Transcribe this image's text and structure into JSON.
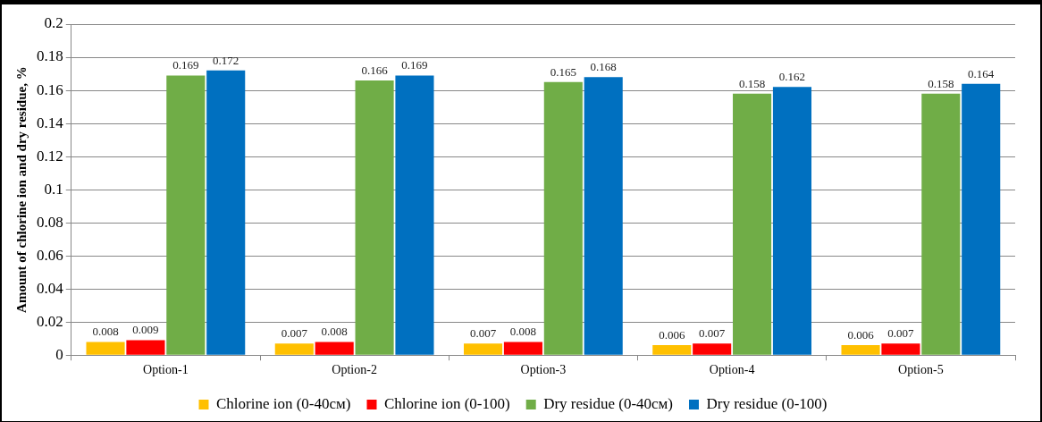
{
  "chart_data": {
    "type": "bar",
    "ylabel": "Amount of chlorine ion and dry residue, %",
    "categories": [
      "Option-1",
      "Option-2",
      "Option-3",
      "Option-4",
      "Option-5"
    ],
    "series": [
      {
        "name": "Chlorine ion (0-40см)",
        "color": "#ffc000",
        "values": [
          0.008,
          0.007,
          0.007,
          0.006,
          0.006
        ]
      },
      {
        "name": "Chlorine ion (0-100)",
        "color": "#ff0000",
        "values": [
          0.009,
          0.008,
          0.008,
          0.007,
          0.007
        ]
      },
      {
        "name": "Dry residue (0-40см)",
        "color": "#70ad47",
        "values": [
          0.169,
          0.166,
          0.165,
          0.158,
          0.158
        ]
      },
      {
        "name": "Dry residue (0-100)",
        "color": "#0070c0",
        "values": [
          0.172,
          0.169,
          0.168,
          0.162,
          0.164
        ]
      }
    ],
    "ylim": [
      0,
      0.2
    ],
    "yticks": [
      0,
      0.02,
      0.04,
      0.06,
      0.08,
      0.1,
      0.12,
      0.14,
      0.16,
      0.18,
      0.2
    ],
    "grid": "y",
    "legend": "bottom",
    "data_labels": true
  }
}
